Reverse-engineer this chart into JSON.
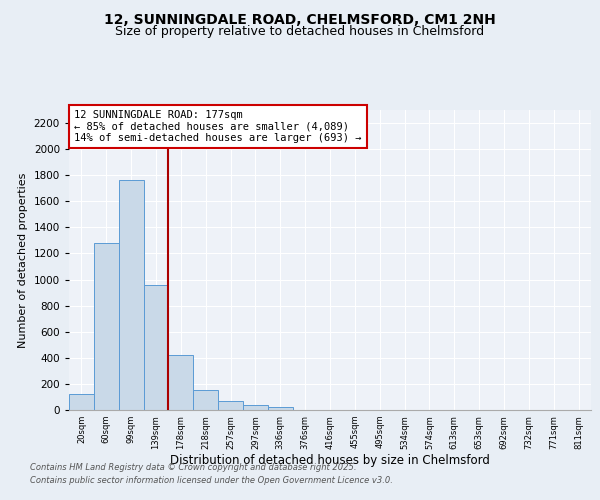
{
  "title": "12, SUNNINGDALE ROAD, CHELMSFORD, CM1 2NH",
  "subtitle": "Size of property relative to detached houses in Chelmsford",
  "xlabel": "Distribution of detached houses by size in Chelmsford",
  "ylabel": "Number of detached properties",
  "bar_labels": [
    "20sqm",
    "60sqm",
    "99sqm",
    "139sqm",
    "178sqm",
    "218sqm",
    "257sqm",
    "297sqm",
    "336sqm",
    "376sqm",
    "416sqm",
    "455sqm",
    "495sqm",
    "534sqm",
    "574sqm",
    "613sqm",
    "653sqm",
    "692sqm",
    "732sqm",
    "771sqm",
    "811sqm"
  ],
  "bar_values": [
    120,
    1280,
    1760,
    960,
    420,
    150,
    70,
    40,
    20,
    0,
    0,
    0,
    0,
    0,
    0,
    0,
    0,
    0,
    0,
    0,
    0
  ],
  "bar_color": "#c9d9e8",
  "bar_edge_color": "#5b9bd5",
  "red_line_x": 3.5,
  "annotation_title": "12 SUNNINGDALE ROAD: 177sqm",
  "annotation_line1": "← 85% of detached houses are smaller (4,089)",
  "annotation_line2": "14% of semi-detached houses are larger (693) →",
  "ylim": [
    0,
    2300
  ],
  "yticks": [
    0,
    200,
    400,
    600,
    800,
    1000,
    1200,
    1400,
    1600,
    1800,
    2000,
    2200
  ],
  "bg_color": "#e8eef5",
  "plot_bg_color": "#eef2f8",
  "footer1": "Contains HM Land Registry data © Crown copyright and database right 2025.",
  "footer2": "Contains public sector information licensed under the Open Government Licence v3.0.",
  "title_fontsize": 10,
  "subtitle_fontsize": 9
}
